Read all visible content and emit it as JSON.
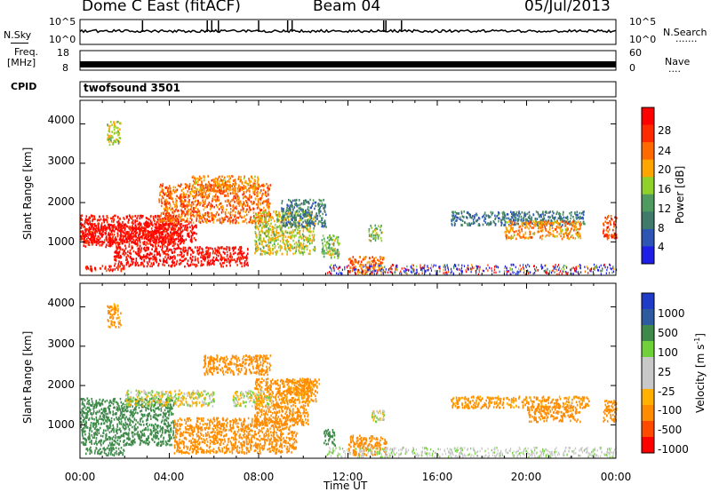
{
  "header": {
    "station": "Dome C East (fitACF)",
    "beam": "Beam 04",
    "date": "05/Jul/2013"
  },
  "noise_panel": {
    "left_label": "N.Sky",
    "left_ticks": [
      "10^5",
      "10^0"
    ],
    "right_ticks": [
      "10^5",
      "10^0"
    ],
    "right_label": "N.Search",
    "right_dots": "......."
  },
  "freq_panel": {
    "label_line1": "Freq.",
    "label_line2": "[MHz]",
    "left_ticks": [
      "18",
      "8"
    ],
    "right_ticks": [
      "60",
      "0"
    ],
    "right_label": "Nave",
    "right_dots": "...."
  },
  "cpid_panel": {
    "label": "CPID",
    "value": "twofsound 3501"
  },
  "colors": {
    "power_scale": [
      "#1e1ee6",
      "#2e55b4",
      "#3f7a6a",
      "#4f9a5f",
      "#8fd02a",
      "#ffa500",
      "#ff6a00",
      "#ff2a00",
      "#ff0000"
    ],
    "velocity_scale": [
      "#ff0000",
      "#ff4a00",
      "#ff8c00",
      "#ffb000",
      "#c8c8c8",
      "#c8c8c8",
      "#6fd03a",
      "#3f8a4a",
      "#2e5aa0",
      "#1e3cc8"
    ]
  },
  "chart_data": [
    {
      "type": "heatmap",
      "title": "",
      "xlabel": "Time UT",
      "ylabel": "Slant Range [km]",
      "x_ticks": [
        "00:00",
        "04:00",
        "08:00",
        "12:00",
        "16:00",
        "20:00",
        "00:00"
      ],
      "y_ticks": [
        "1000",
        "2000",
        "3000",
        "4000"
      ],
      "ylim": [
        150,
        4600
      ],
      "xlim_hours": [
        0,
        24
      ],
      "colorbar": {
        "label": "Power [dB]",
        "ticks": [
          "4",
          "8",
          "12",
          "16",
          "20",
          "24",
          "28"
        ],
        "range": [
          0,
          30
        ]
      },
      "regions": [
        {
          "t": [
            0,
            4.5
          ],
          "r": [
            900,
            1700
          ],
          "value": 27
        },
        {
          "t": [
            0,
            5.2
          ],
          "r": [
            1000,
            1500
          ],
          "value": 29
        },
        {
          "t": [
            1.5,
            7.5
          ],
          "r": [
            400,
            900
          ],
          "value": 28
        },
        {
          "t": [
            0.2,
            2.0
          ],
          "r": [
            280,
            420
          ],
          "value": 26
        },
        {
          "t": [
            3.5,
            8.5
          ],
          "r": [
            1500,
            2500
          ],
          "value": 22
        },
        {
          "t": [
            5.0,
            8.0
          ],
          "r": [
            2300,
            2700
          ],
          "value": 20
        },
        {
          "t": [
            7.8,
            10.5
          ],
          "r": [
            700,
            1800
          ],
          "value": 16
        },
        {
          "t": [
            9.0,
            11.0
          ],
          "r": [
            1400,
            2100
          ],
          "value": 8
        },
        {
          "t": [
            10.8,
            11.6
          ],
          "r": [
            600,
            1200
          ],
          "value": 14
        },
        {
          "t": [
            12.0,
            13.6
          ],
          "r": [
            250,
            650
          ],
          "value": 22
        },
        {
          "t": [
            12.9,
            13.5
          ],
          "r": [
            1050,
            1450
          ],
          "value": 14
        },
        {
          "t": [
            16.6,
            22.6
          ],
          "r": [
            1450,
            1800
          ],
          "value": 8
        },
        {
          "t": [
            19.0,
            22.4
          ],
          "r": [
            1100,
            1550
          ],
          "value": 20
        },
        {
          "t": [
            23.4,
            24
          ],
          "r": [
            1100,
            1700
          ],
          "value": 24
        },
        {
          "t": [
            1.2,
            1.8
          ],
          "r": [
            3500,
            4100
          ],
          "value": 16
        }
      ]
    },
    {
      "type": "heatmap",
      "title": "",
      "xlabel": "Time UT",
      "ylabel": "Slant Range [km]",
      "x_ticks": [
        "00:00",
        "04:00",
        "08:00",
        "12:00",
        "16:00",
        "20:00",
        "00:00"
      ],
      "y_ticks": [
        "1000",
        "2000",
        "3000",
        "4000"
      ],
      "ylim": [
        150,
        4600
      ],
      "xlim_hours": [
        0,
        24
      ],
      "colorbar": {
        "label": "Velocity [m s^-1]",
        "ticks": [
          "1000",
          "500",
          "100",
          "25",
          "-25",
          "-100",
          "-500",
          "-1000"
        ]
      },
      "regions": [
        {
          "t": [
            0,
            4.2
          ],
          "r": [
            500,
            1700
          ],
          "value": 200
        },
        {
          "t": [
            2.0,
            6.0
          ],
          "r": [
            1500,
            1900
          ],
          "value": 0
        },
        {
          "t": [
            4.2,
            9.7
          ],
          "r": [
            300,
            1200
          ],
          "value": -300
        },
        {
          "t": [
            0.2,
            2.0
          ],
          "r": [
            250,
            450
          ],
          "value": 200
        },
        {
          "t": [
            7.8,
            10.2
          ],
          "r": [
            1000,
            2200
          ],
          "value": -300
        },
        {
          "t": [
            5.5,
            8.5
          ],
          "r": [
            2300,
            2800
          ],
          "value": -200
        },
        {
          "t": [
            6.8,
            8.6
          ],
          "r": [
            1500,
            1900
          ],
          "value": 0
        },
        {
          "t": [
            9.0,
            10.7
          ],
          "r": [
            1600,
            2200
          ],
          "value": -150
        },
        {
          "t": [
            10.9,
            11.4
          ],
          "r": [
            500,
            900
          ],
          "value": 200
        },
        {
          "t": [
            12.0,
            13.7
          ],
          "r": [
            250,
            750
          ],
          "value": -300
        },
        {
          "t": [
            13.0,
            13.6
          ],
          "r": [
            1100,
            1400
          ],
          "value": 0
        },
        {
          "t": [
            16.6,
            22.8
          ],
          "r": [
            1450,
            1750
          ],
          "value": -150
        },
        {
          "t": [
            20.0,
            22.4
          ],
          "r": [
            1100,
            1500
          ],
          "value": -300
        },
        {
          "t": [
            23.4,
            24
          ],
          "r": [
            1100,
            1650
          ],
          "value": -300
        },
        {
          "t": [
            1.2,
            1.8
          ],
          "r": [
            3500,
            4100
          ],
          "value": -150
        }
      ]
    }
  ],
  "power_cbar_label": "Power [dB]",
  "velocity_cbar_label": "Velocity [m s",
  "velocity_cbar_sup": "-1",
  "velocity_cbar_end": "]",
  "xaxis_label": "Time UT"
}
